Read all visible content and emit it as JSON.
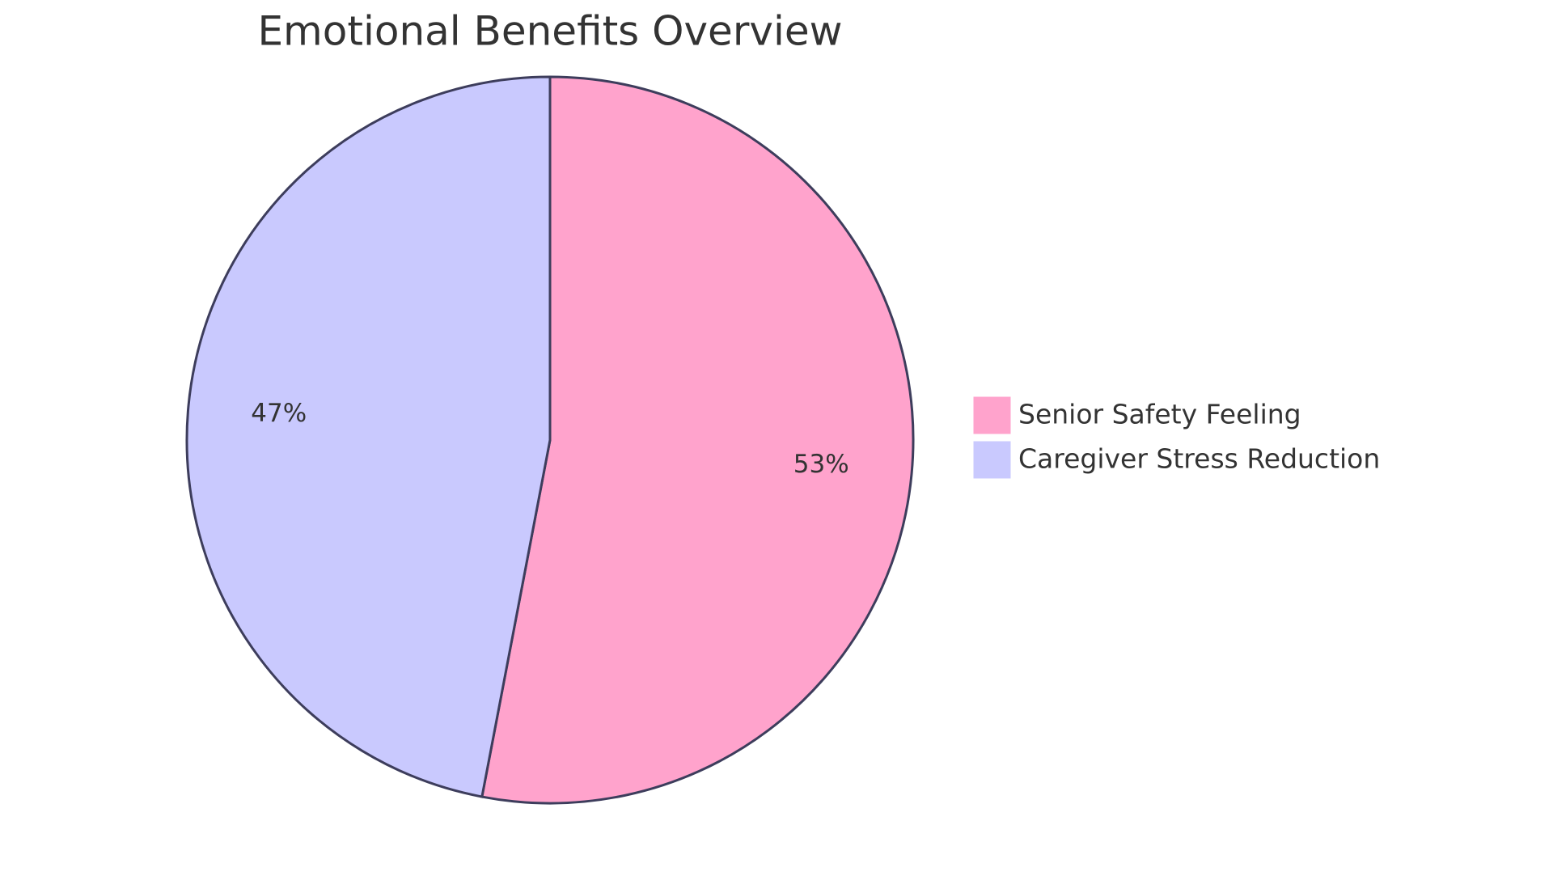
{
  "chart_data": {
    "type": "pie",
    "title": "Emotional Benefits Overview",
    "categories": [
      "Senior Safety Feeling",
      "Caregiver Stress Reduction"
    ],
    "values": [
      53,
      47
    ],
    "value_labels": [
      "53%",
      "47%"
    ],
    "colors": [
      "#ffa3cc",
      "#c9c9fe"
    ]
  }
}
